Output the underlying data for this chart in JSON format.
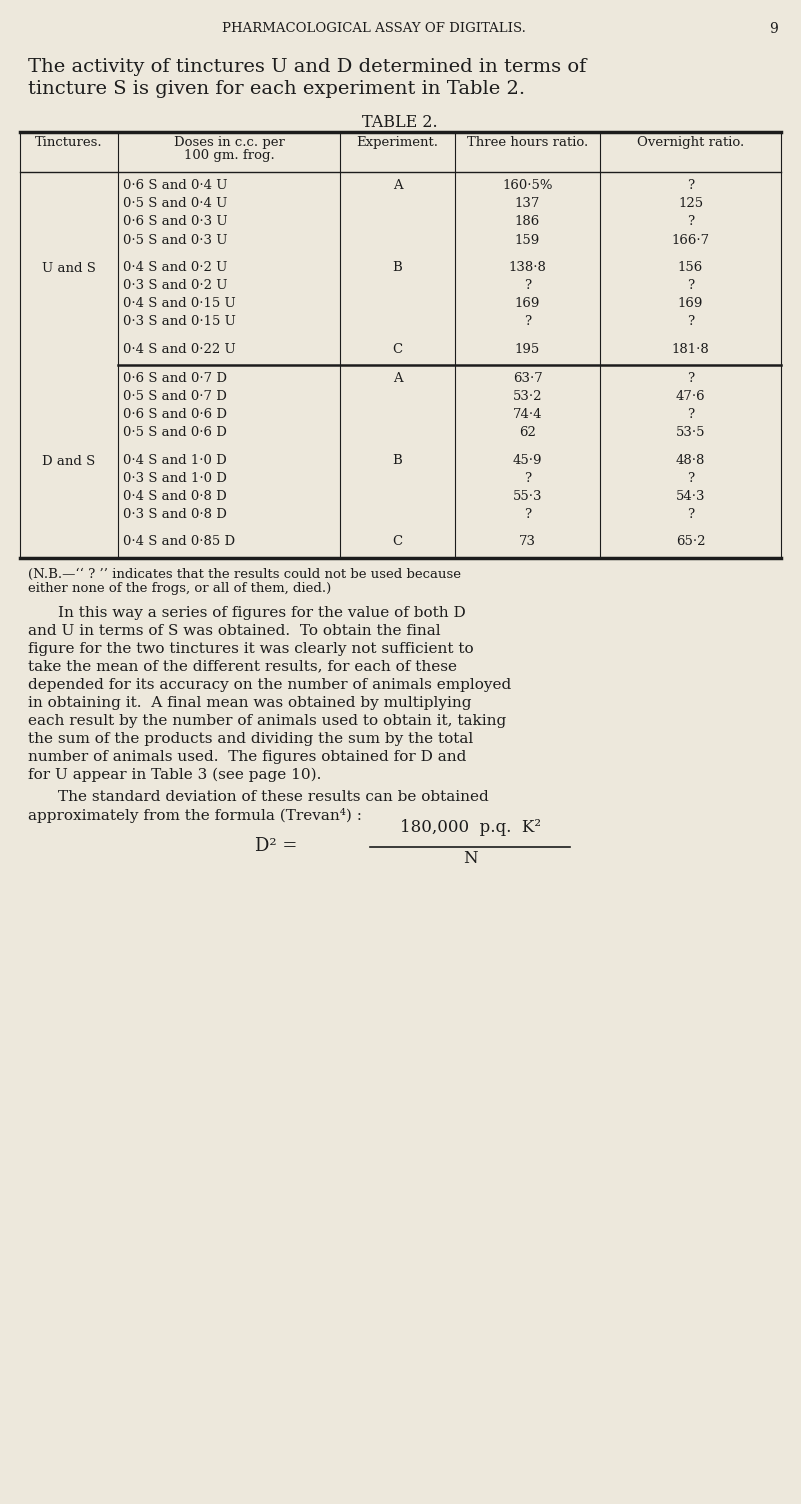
{
  "background_color": "#ede8dc",
  "page_header": "PHARMACOLOGICAL ASSAY OF DIGITALIS.",
  "page_number": "9",
  "intro_line1": "The activity of tinctures U and D determined in terms of",
  "intro_line2": "tincture S is given for each experiment in Table 2.",
  "table_title": "TABLE 2.",
  "u_and_s_rows": [
    [
      "0·6 S and 0·4 U",
      "A",
      "160·5%",
      "?"
    ],
    [
      "0·5 S and 0·4 U",
      "",
      "137",
      "125"
    ],
    [
      "0·6 S and 0·3 U",
      "",
      "186",
      "?"
    ],
    [
      "0·5 S and 0·3 U",
      "",
      "159",
      "166·7"
    ],
    [
      "0·4 S and 0·2 U",
      "B",
      "138·8",
      "156"
    ],
    [
      "0·3 S and 0·2 U",
      "",
      "?",
      "?"
    ],
    [
      "0·4 S and 0·15 U",
      "",
      "169",
      "169"
    ],
    [
      "0·3 S and 0·15 U",
      "",
      "?",
      "?"
    ],
    [
      "0·4 S and 0·22 U",
      "C",
      "195",
      "181·8"
    ]
  ],
  "d_and_s_rows": [
    [
      "0·6 S and 0·7 D",
      "A",
      "63·7",
      "?"
    ],
    [
      "0·5 S and 0·7 D",
      "",
      "53·2",
      "47·6"
    ],
    [
      "0·6 S and 0·6 D",
      "",
      "74·4",
      "?"
    ],
    [
      "0·5 S and 0·6 D",
      "",
      "62",
      "53·5"
    ],
    [
      "0·4 S and 1·0 D",
      "B",
      "45·9",
      "48·8"
    ],
    [
      "0·3 S and 1·0 D",
      "",
      "?",
      "?"
    ],
    [
      "0·4 S and 0·8 D",
      "",
      "55·3",
      "54·3"
    ],
    [
      "0·3 S and 0·8 D",
      "",
      "?",
      "?"
    ],
    [
      "0·4 S and 0·85 D",
      "C",
      "73",
      "65·2"
    ]
  ],
  "nb_line1": "(N.B.—‘‘ ? ’’ indicates that the results could not be used because",
  "nb_line2": "either none of the frogs, or all of them, died.)",
  "body_lines": [
    "In this way a series of figures for the value of both D",
    "and U in terms of S was obtained.  To obtain the final",
    "figure for the two tinctures it was clearly not sufficient to",
    "take the mean of the different results, for each of these",
    "depended for its accuracy on the number of animals employed",
    "in obtaining it.  A final mean was obtained by multiplying",
    "each result by the number of animals used to obtain it, taking",
    "the sum of the products and dividing the sum by the total",
    "number of animals used.  The figures obtained for D and",
    "for U appear in Table 3 (see page 10)."
  ],
  "para2_lines": [
    "The standard deviation of these results can be obtained",
    "approximately from the formula (Trevan⁴) :"
  ],
  "formula_lhs": "D² =",
  "formula_num": "180,000  p.q.  K²",
  "formula_den": "N"
}
